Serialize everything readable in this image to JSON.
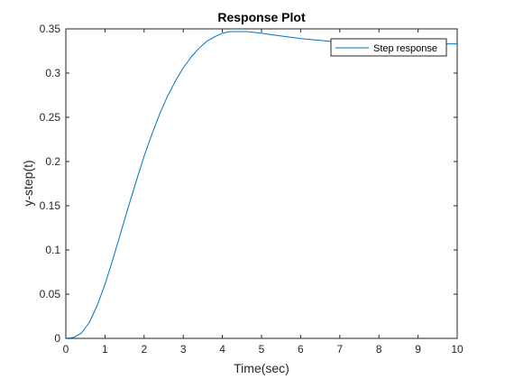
{
  "chart_data": {
    "type": "line",
    "title": "Response Plot",
    "xlabel": "Time(sec)",
    "ylabel": "y-step(t)",
    "xlim": [
      0,
      10
    ],
    "ylim": [
      0,
      0.35
    ],
    "xticks": [
      0,
      1,
      2,
      3,
      4,
      5,
      6,
      7,
      8,
      9,
      10
    ],
    "yticks": [
      0,
      0.05,
      0.1,
      0.15,
      0.2,
      0.25,
      0.3,
      0.35
    ],
    "ytick_labels": [
      "0",
      "0.05",
      "0.1",
      "0.15",
      "0.2",
      "0.25",
      "0.3",
      "0.35"
    ],
    "grid": false,
    "legend_position": "top-right",
    "series": [
      {
        "name": "Step response",
        "color": "#0072BD",
        "x": [
          0,
          0.2,
          0.4,
          0.6,
          0.8,
          1.0,
          1.2,
          1.4,
          1.6,
          1.8,
          2.0,
          2.2,
          2.4,
          2.6,
          2.8,
          3.0,
          3.2,
          3.4,
          3.6,
          3.8,
          4.0,
          4.2,
          4.4,
          4.6,
          4.8,
          5.0,
          5.5,
          6.0,
          6.5,
          7.0,
          7.5,
          8.0,
          8.5,
          9.0,
          9.5,
          10.0
        ],
        "y": [
          0,
          0.001,
          0.006,
          0.018,
          0.037,
          0.061,
          0.089,
          0.119,
          0.149,
          0.178,
          0.206,
          0.231,
          0.254,
          0.274,
          0.291,
          0.306,
          0.318,
          0.328,
          0.336,
          0.341,
          0.345,
          0.347,
          0.347,
          0.347,
          0.346,
          0.345,
          0.342,
          0.339,
          0.337,
          0.335,
          0.334,
          0.333,
          0.333,
          0.333,
          0.333,
          0.333
        ]
      }
    ]
  }
}
